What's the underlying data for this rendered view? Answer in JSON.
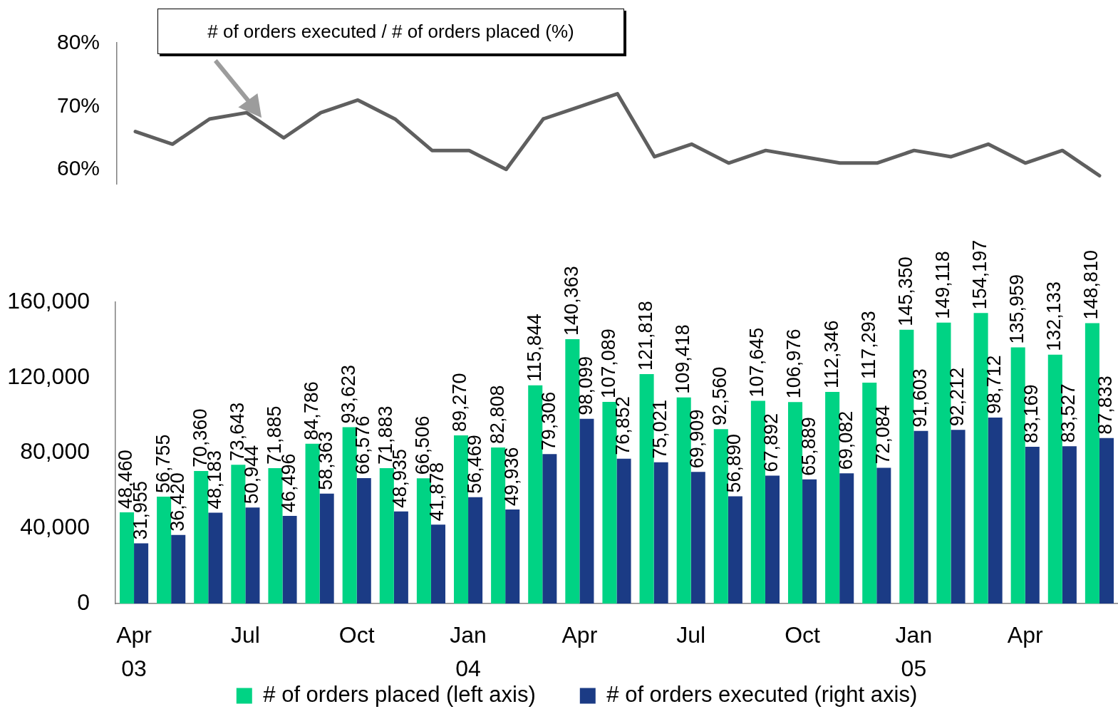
{
  "chart_data": [
    {
      "type": "line",
      "title": "# of orders executed / # of orders placed (%)",
      "categories": [
        null,
        null,
        null,
        null,
        null,
        null,
        null,
        null,
        null,
        null,
        null,
        null,
        null,
        null,
        null,
        null,
        null,
        null,
        null,
        null,
        null,
        null,
        null,
        null,
        null,
        null,
        null
      ],
      "values": [
        66,
        64,
        68,
        69,
        65,
        69,
        71,
        68,
        63,
        63,
        60,
        68,
        70,
        72,
        62,
        64,
        61,
        63,
        62,
        61,
        61,
        63,
        62,
        64,
        61,
        63,
        59
      ],
      "color": "#5f5f5f",
      "line_style": "solid",
      "ylim": [
        57.7,
        80.1
      ],
      "yticks": [
        {
          "value": 60,
          "label": "60%"
        },
        {
          "value": 70,
          "label": "70%"
        },
        {
          "value": 80,
          "label": "80%"
        }
      ],
      "tick_labels": "y"
    },
    {
      "type": "bar",
      "categories": [
        "Apr\n03",
        null,
        null,
        "Jul",
        null,
        null,
        "Oct",
        null,
        null,
        "Jan\n04",
        null,
        null,
        "Apr",
        null,
        null,
        "Jul",
        null,
        null,
        "Oct",
        null,
        null,
        "Jan\n05",
        null,
        null,
        "Apr",
        null,
        null
      ],
      "series": [
        {
          "name": "# of orders placed (left axis)",
          "color": "#00d384",
          "values": [
            48460,
            56755,
            70360,
            73643,
            71885,
            84786,
            93623,
            71883,
            66506,
            89270,
            82808,
            115844,
            140363,
            107089,
            121818,
            109418,
            92560,
            107645,
            106976,
            112346,
            117293,
            145350,
            149118,
            154197,
            135959,
            132133,
            148810
          ],
          "value_labels": [
            "48,460",
            "56,755",
            "70,360",
            "73,643",
            "71,885",
            "84,786",
            "93,623",
            "71,883",
            "66,506",
            "89,270",
            "82,808",
            "115,844",
            "140,363",
            "107,089",
            "121,818",
            "109,418",
            "92,560",
            "107,645",
            "106,976",
            "112,346",
            "117,293",
            "145,350",
            "149,118",
            "154,197",
            "135,959",
            "132,133",
            "148,810"
          ]
        },
        {
          "name": "# of orders executed (right axis)",
          "color": "#1b3b85",
          "values": [
            31955,
            36420,
            48183,
            50944,
            46496,
            58363,
            66576,
            48935,
            41878,
            56469,
            49936,
            79306,
            98099,
            76852,
            75021,
            69909,
            56890,
            67892,
            65889,
            69082,
            72084,
            91603,
            92212,
            98712,
            83169,
            83527,
            87833
          ],
          "value_labels": [
            "31,955",
            "36,420",
            "48,183",
            "50,944",
            "46,496",
            "58,363",
            "66,576",
            "48,935",
            "41,878",
            "56,469",
            "49,936",
            "79,306",
            "98,099",
            "76,852",
            "75,021",
            "69,909",
            "56,890",
            "67,892",
            "65,889",
            "69,082",
            "72,084",
            "91,603",
            "92,212",
            "98,712",
            "83,169",
            "83,527",
            "87,833"
          ]
        }
      ],
      "ylim": [
        0,
        160000
      ],
      "yticks": [
        {
          "value": 0,
          "label": "0"
        },
        {
          "value": 40000,
          "label": "40,000"
        },
        {
          "value": 80000,
          "label": "80,000"
        },
        {
          "value": 120000,
          "label": "120,000"
        },
        {
          "value": 160000,
          "label": "160,000"
        }
      ],
      "legend": "bottom"
    }
  ]
}
